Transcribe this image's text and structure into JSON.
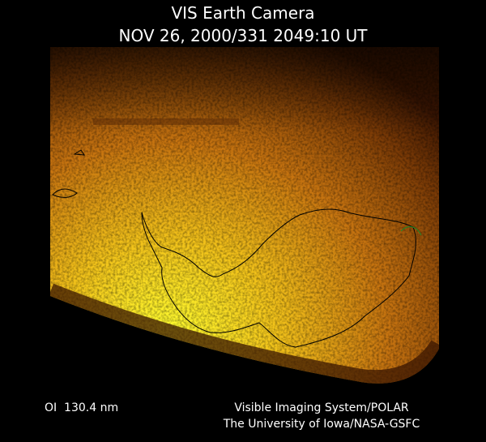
{
  "header": {
    "title": "VIS Earth Camera",
    "timestamp": "NOV 26, 2000/331 2049:10 UT"
  },
  "footer": {
    "wavelength": "OI  130.4 nm",
    "instrument": "Visible Imaging System/POLAR",
    "credit": "The University of Iowa/NASA-GSFC"
  }
}
